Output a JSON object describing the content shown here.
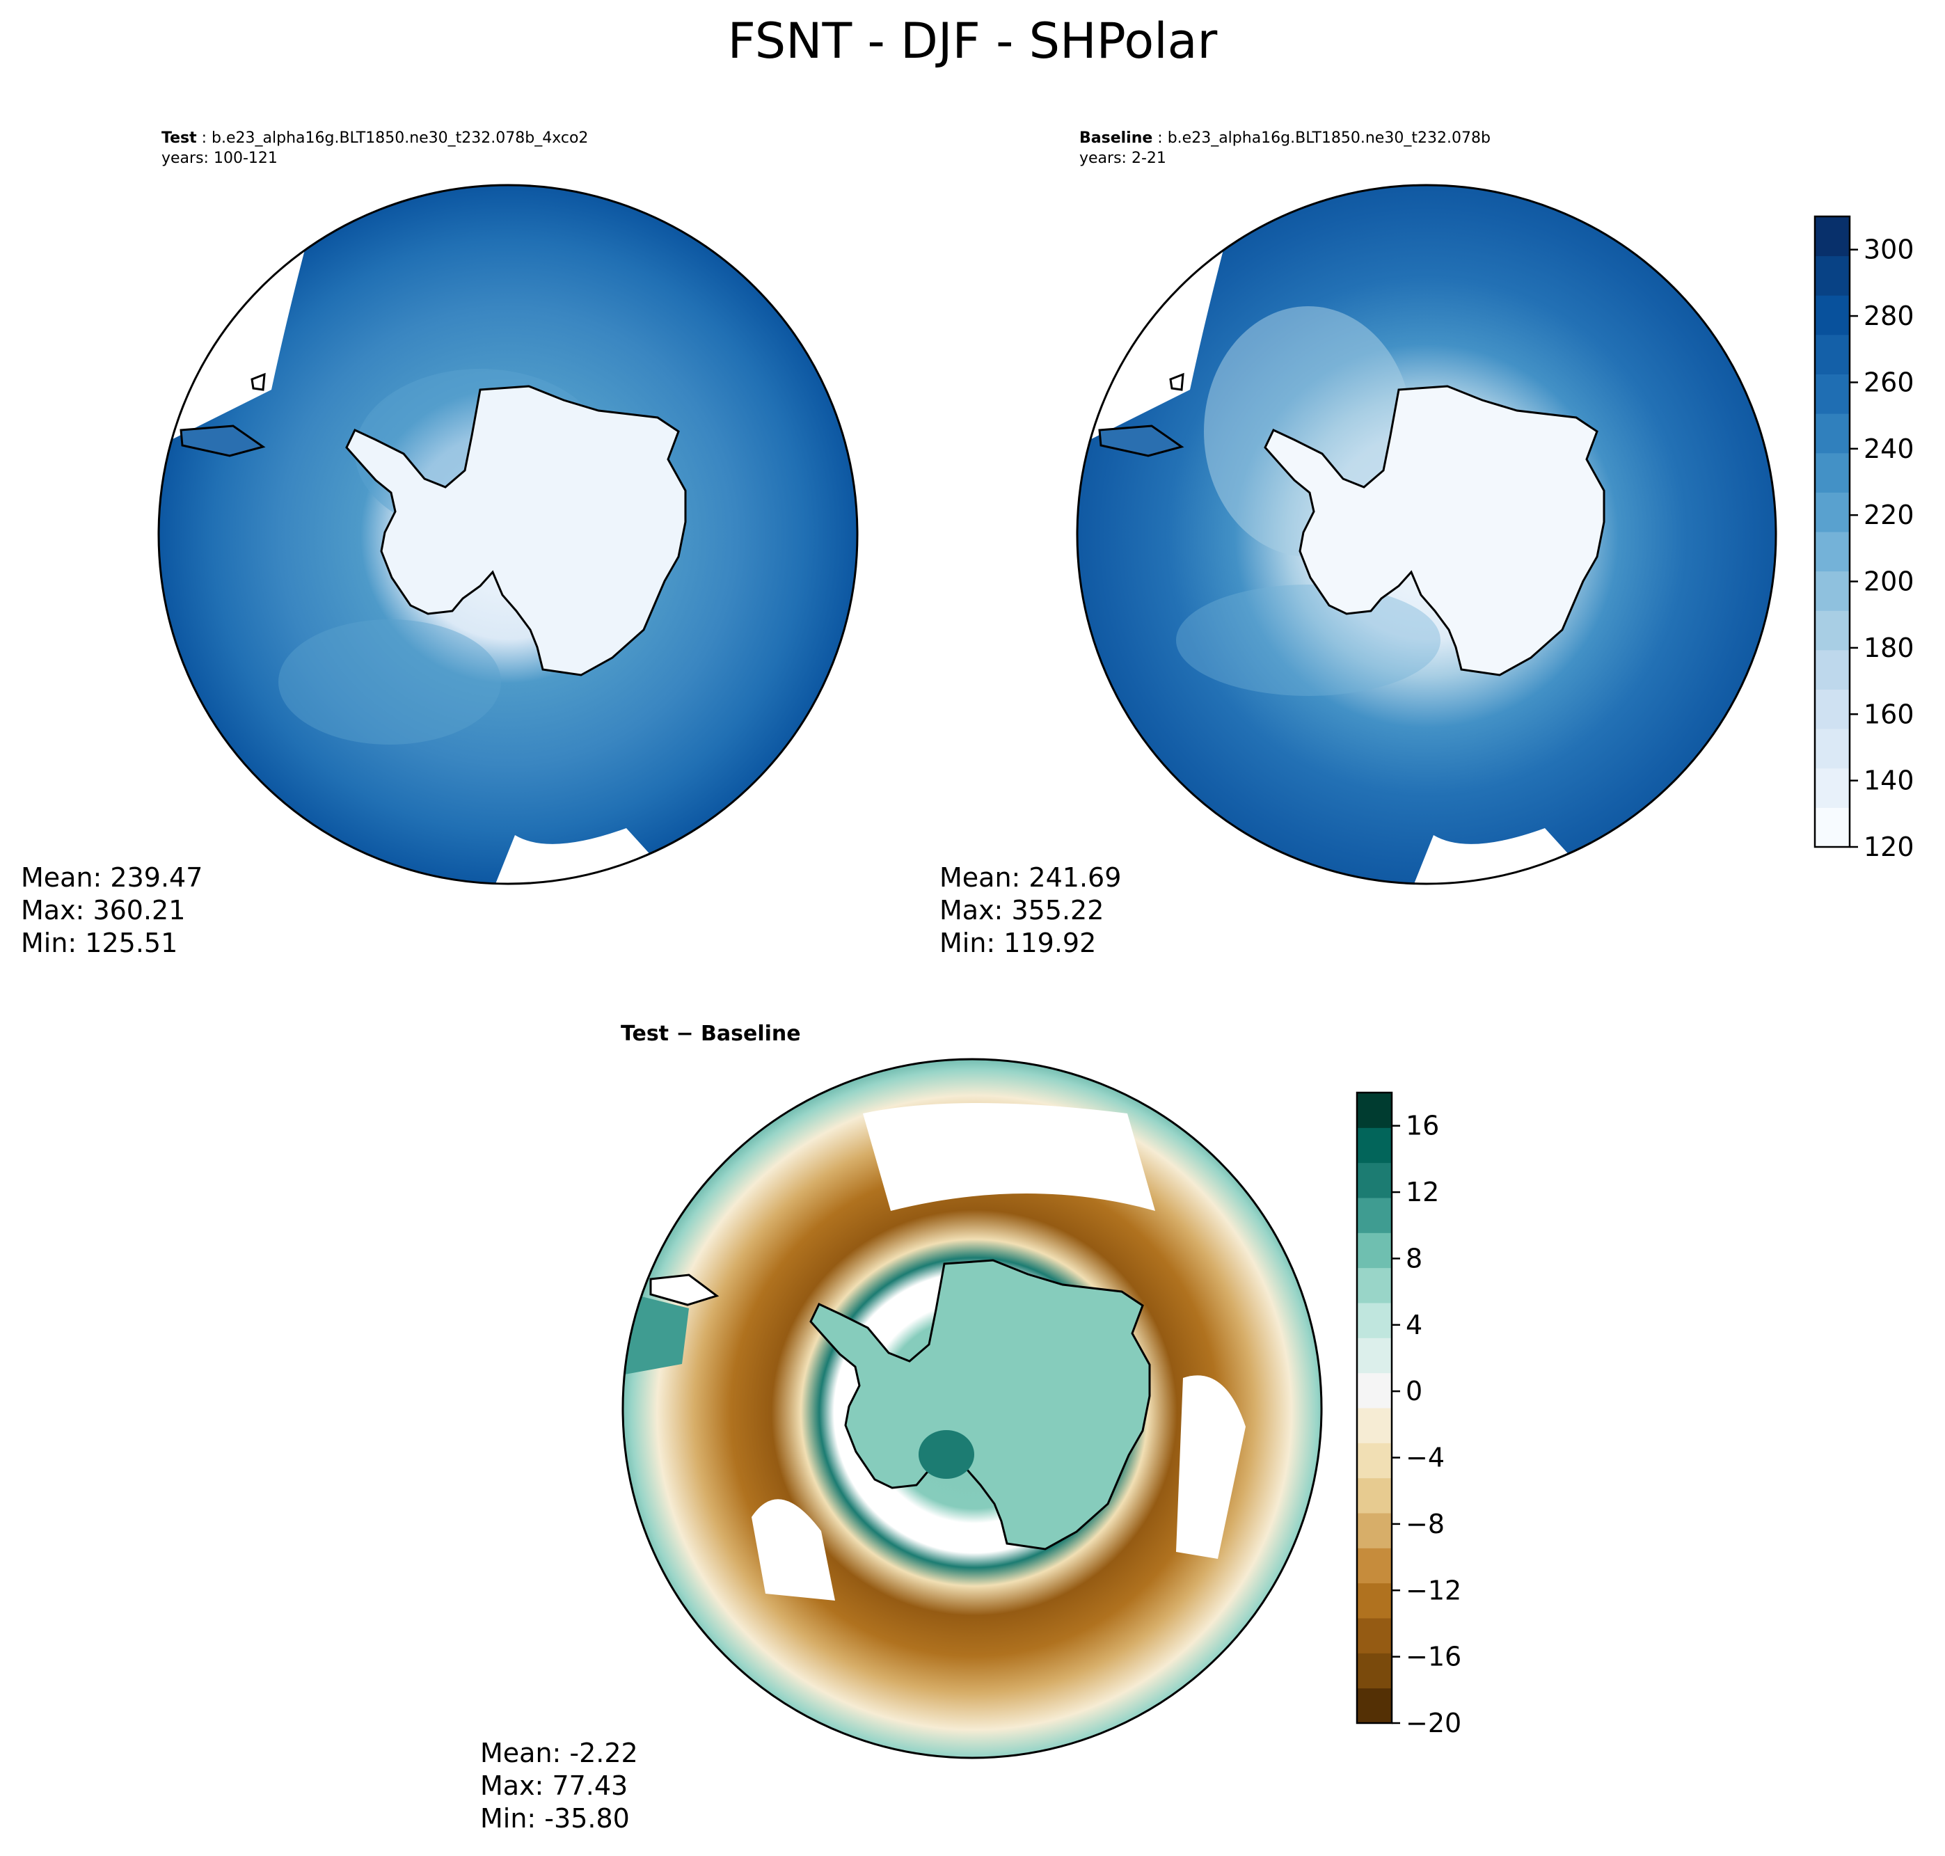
{
  "figure": {
    "title": "FSNT - DJF - SHPolar"
  },
  "panels": {
    "test": {
      "label": "Test",
      "case": "b.e23_alpha16g.BLT1850.ne30_t232.078b_4xco2",
      "years": "years: 100-121",
      "stats": {
        "mean": "Mean: 239.47",
        "max": "Max: 360.21",
        "min": "Min: 125.51"
      }
    },
    "baseline": {
      "label": "Baseline",
      "case": "b.e23_alpha16g.BLT1850.ne30_t232.078b",
      "years": "years: 2-21",
      "stats": {
        "mean": "Mean: 241.69",
        "max": "Max: 355.22",
        "min": "Min: 119.92"
      }
    },
    "diff": {
      "label": "Test − Baseline",
      "stats": {
        "mean": "Mean: -2.22",
        "max": "Max: 77.43",
        "min": "Min: -35.80"
      }
    }
  },
  "colorbars": {
    "main": {
      "colormap": "Blues",
      "range": [
        120,
        310
      ],
      "ticks": [
        120,
        140,
        160,
        180,
        200,
        220,
        240,
        260,
        280,
        300
      ],
      "tick_labels": [
        "120",
        "140",
        "160",
        "180",
        "200",
        "220",
        "240",
        "260",
        "280",
        "300"
      ],
      "colors": [
        "#f7fbff",
        "#e8f1fa",
        "#dbe9f6",
        "#cfe1f2",
        "#bed8ec",
        "#a8cee4",
        "#8fc1de",
        "#74b2d8",
        "#59a1cf",
        "#4391c6",
        "#3080bd",
        "#1f6eb3",
        "#1460a8",
        "#08519c",
        "#084285",
        "#08306b"
      ]
    },
    "diff": {
      "colormap": "BrBG",
      "range": [
        -20,
        18
      ],
      "ticks": [
        -20,
        -16,
        -12,
        -8,
        -4,
        0,
        4,
        8,
        12,
        16
      ],
      "tick_labels": [
        "−20",
        "−16",
        "−12",
        "−8",
        "−4",
        "0",
        "4",
        "8",
        "12",
        "16"
      ],
      "colors": [
        "#543005",
        "#7a4a0c",
        "#955b13",
        "#b0721f",
        "#c68c3c",
        "#d7ae69",
        "#e7cb90",
        "#f1dfb4",
        "#f6ecd4",
        "#f5f5f5",
        "#dcefeb",
        "#c0e6de",
        "#99d5c8",
        "#6fbfb0",
        "#3f9c91",
        "#1c7c72",
        "#02655a",
        "#003c30"
      ]
    }
  }
}
